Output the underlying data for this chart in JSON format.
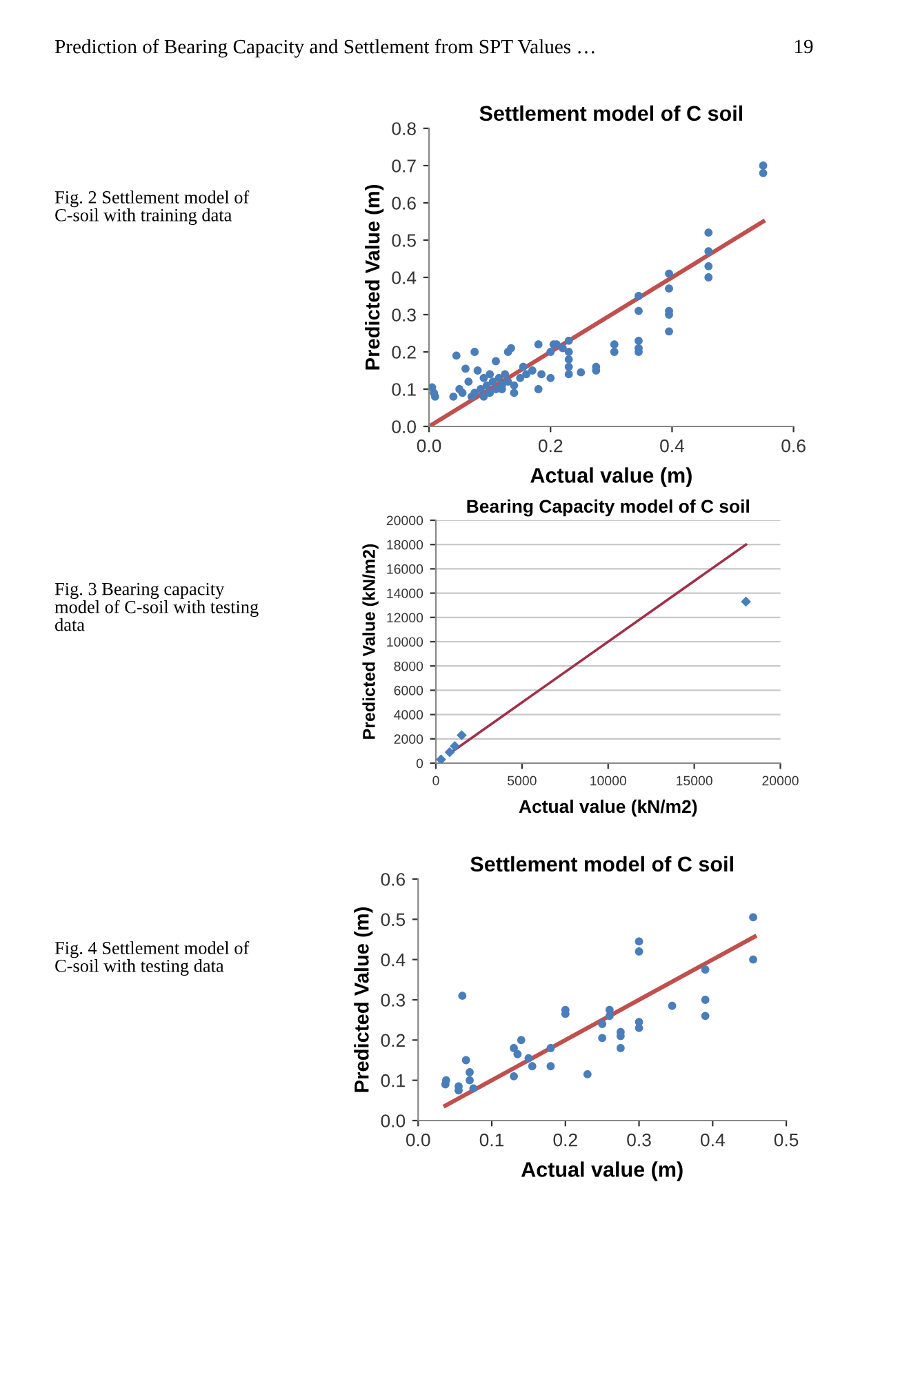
{
  "chart_data": [
    {
      "type": "scatter",
      "title": "Settlement model of C soil",
      "xlabel": "Actual value (m)",
      "ylabel": "Predicted Value (m)",
      "annotations": [
        "Prediction of Bearing Capacity and Settlement from SPT Values …",
        "19",
        "Fig. 2 Settlement model of\nC-soil with training data"
      ],
      "xlim": [
        0,
        0.6
      ],
      "ylim": [
        0,
        0.8
      ],
      "xticks": [
        {
          "value": 0,
          "label": "0.0"
        },
        {
          "value": 0.2,
          "label": "0.2"
        },
        {
          "value": 0.4,
          "label": "0.4"
        },
        {
          "value": 0.6,
          "label": "0.6"
        }
      ],
      "yticks": [
        {
          "value": 0,
          "label": "0.0"
        },
        {
          "value": 0.1,
          "label": "0.1"
        },
        {
          "value": 0.2,
          "label": "0.2"
        },
        {
          "value": 0.3,
          "label": "0.3"
        },
        {
          "value": 0.4,
          "label": "0.4"
        },
        {
          "value": 0.5,
          "label": "0.5"
        },
        {
          "value": 0.6,
          "label": "0.6"
        },
        {
          "value": 0.7,
          "label": "0.7"
        },
        {
          "value": 0.8,
          "label": "0.8"
        }
      ],
      "grid": false,
      "series": [
        {
          "color": "#4a7ebb",
          "marker": "circle",
          "x": [
            0.005,
            0.008,
            0.01,
            0.04,
            0.045,
            0.05,
            0.055,
            0.06,
            0.065,
            0.07,
            0.075,
            0.075,
            0.08,
            0.085,
            0.09,
            0.09,
            0.095,
            0.1,
            0.1,
            0.105,
            0.11,
            0.11,
            0.115,
            0.12,
            0.12,
            0.125,
            0.13,
            0.13,
            0.135,
            0.14,
            0.14,
            0.15,
            0.155,
            0.16,
            0.17,
            0.18,
            0.18,
            0.185,
            0.2,
            0.2,
            0.205,
            0.21,
            0.22,
            0.23,
            0.23,
            0.23,
            0.23,
            0.23,
            0.25,
            0.275,
            0.275,
            0.305,
            0.305,
            0.345,
            0.345,
            0.345,
            0.345,
            0.345,
            0.395,
            0.395,
            0.395,
            0.395,
            0.395,
            0.46,
            0.46,
            0.46,
            0.46,
            0.55,
            0.55
          ],
          "values": [
            0.105,
            0.09,
            0.08,
            0.08,
            0.19,
            0.1,
            0.09,
            0.155,
            0.12,
            0.08,
            0.2,
            0.09,
            0.15,
            0.1,
            0.13,
            0.08,
            0.11,
            0.14,
            0.09,
            0.12,
            0.1,
            0.175,
            0.13,
            0.11,
            0.1,
            0.14,
            0.2,
            0.12,
            0.21,
            0.09,
            0.11,
            0.13,
            0.16,
            0.14,
            0.15,
            0.22,
            0.1,
            0.14,
            0.13,
            0.2,
            0.22,
            0.22,
            0.21,
            0.23,
            0.2,
            0.18,
            0.16,
            0.14,
            0.145,
            0.15,
            0.16,
            0.2,
            0.22,
            0.35,
            0.31,
            0.23,
            0.21,
            0.2,
            0.41,
            0.37,
            0.31,
            0.3,
            0.255,
            0.52,
            0.47,
            0.43,
            0.4,
            0.7,
            0.68
          ]
        },
        {
          "type": "line",
          "color": "#c0504d",
          "x": [
            0,
            0.55
          ],
          "values": [
            0,
            0.55
          ]
        }
      ]
    },
    {
      "type": "scatter",
      "title": "Bearing Capacity model of C soil",
      "xlabel": "Actual value (kN/m2)",
      "ylabel": "Predicted Value (kN/m2)",
      "annotations": [
        "Fig. 3 Bearing capacity\nmodel of C-soil with testing\ndata"
      ],
      "xlim": [
        0,
        20000
      ],
      "ylim": [
        0,
        20000
      ],
      "xticks": [
        0,
        5000,
        10000,
        15000,
        20000
      ],
      "yticks": [
        0,
        2000,
        4000,
        6000,
        8000,
        10000,
        12000,
        14000,
        16000,
        18000,
        20000
      ],
      "grid": "y",
      "series": [
        {
          "color": "#4a7ebb",
          "marker": "diamond",
          "x": [
            300,
            800,
            1100,
            1500,
            18000
          ],
          "values": [
            300,
            900,
            1400,
            2300,
            13300
          ]
        },
        {
          "type": "line",
          "color": "#a0304a",
          "x": [
            1000,
            18000
          ],
          "values": [
            1000,
            18000
          ]
        }
      ]
    },
    {
      "type": "scatter",
      "title": "Settlement model of C soil",
      "xlabel": "Actual value (m)",
      "ylabel": "Predicted Value (m)",
      "annotations": [
        "Fig. 4 Settlement model of\nC-soil with testing data"
      ],
      "xlim": [
        0,
        0.5
      ],
      "ylim": [
        0,
        0.6
      ],
      "xticks": [
        {
          "value": 0,
          "label": "0.0"
        },
        {
          "value": 0.1,
          "label": "0.1"
        },
        {
          "value": 0.2,
          "label": "0.2"
        },
        {
          "value": 0.3,
          "label": "0.3"
        },
        {
          "value": 0.4,
          "label": "0.4"
        },
        {
          "value": 0.5,
          "label": "0.5"
        }
      ],
      "yticks": [
        {
          "value": 0,
          "label": "0.0"
        },
        {
          "value": 0.1,
          "label": "0.1"
        },
        {
          "value": 0.2,
          "label": "0.2"
        },
        {
          "value": 0.3,
          "label": "0.3"
        },
        {
          "value": 0.4,
          "label": "0.4"
        },
        {
          "value": 0.5,
          "label": "0.5"
        },
        {
          "value": 0.6,
          "label": "0.6"
        }
      ],
      "grid": false,
      "series": [
        {
          "color": "#4a7ebb",
          "marker": "circle",
          "x": [
            0.037,
            0.038,
            0.055,
            0.055,
            0.06,
            0.065,
            0.07,
            0.07,
            0.075,
            0.13,
            0.13,
            0.135,
            0.14,
            0.15,
            0.155,
            0.18,
            0.18,
            0.2,
            0.2,
            0.23,
            0.25,
            0.25,
            0.26,
            0.26,
            0.275,
            0.275,
            0.275,
            0.3,
            0.3,
            0.3,
            0.3,
            0.345,
            0.39,
            0.39,
            0.39,
            0.455,
            0.455
          ],
          "values": [
            0.09,
            0.1,
            0.085,
            0.075,
            0.31,
            0.15,
            0.12,
            0.1,
            0.08,
            0.18,
            0.11,
            0.165,
            0.2,
            0.155,
            0.135,
            0.135,
            0.18,
            0.275,
            0.265,
            0.115,
            0.24,
            0.205,
            0.275,
            0.26,
            0.22,
            0.21,
            0.18,
            0.445,
            0.42,
            0.245,
            0.23,
            0.285,
            0.375,
            0.3,
            0.26,
            0.505,
            0.4
          ]
        },
        {
          "type": "line",
          "color": "#c0504d",
          "x": [
            0.037,
            0.457
          ],
          "values": [
            0.037,
            0.457
          ]
        }
      ]
    }
  ]
}
